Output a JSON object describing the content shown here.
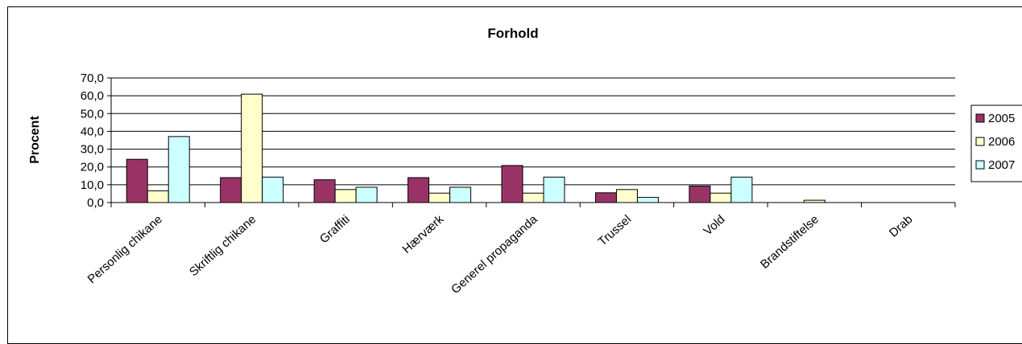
{
  "chart_data": {
    "type": "bar",
    "title": "Forhold",
    "xlabel": "",
    "ylabel": "Procent",
    "ylim": [
      0,
      70
    ],
    "yticks": [
      "0,0",
      "10,0",
      "20,0",
      "30,0",
      "40,0",
      "50,0",
      "60,0",
      "70,0"
    ],
    "grid": true,
    "legend_position": "right",
    "categories": [
      "Personlig chikane",
      "Skriftlig chikane",
      "Graffiti",
      "Hærværk",
      "Generel propaganda",
      "Trussel",
      "Vold",
      "Brandstiftelse",
      "Drab"
    ],
    "series": [
      {
        "name": "2005",
        "color": "#993366",
        "values": [
          24.3,
          14.0,
          12.8,
          14.0,
          20.8,
          5.5,
          9.3,
          0.0,
          0.0
        ]
      },
      {
        "name": "2006",
        "color": "#FFFFCC",
        "values": [
          6.6,
          60.9,
          7.3,
          5.3,
          5.3,
          7.3,
          5.3,
          1.3,
          0.0
        ]
      },
      {
        "name": "2007",
        "color": "#CCFFFF",
        "values": [
          37.1,
          14.3,
          8.6,
          8.6,
          14.3,
          2.9,
          14.3,
          0.0,
          0.0
        ]
      }
    ]
  }
}
